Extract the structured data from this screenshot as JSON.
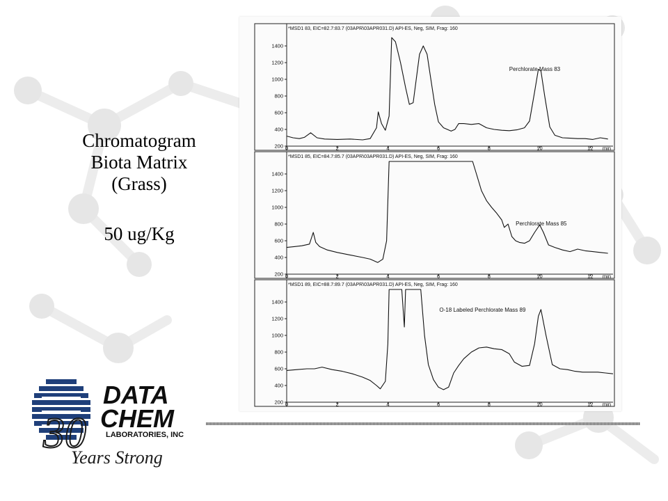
{
  "slide": {
    "title_lines": [
      "Chromatogram",
      "Biota Matrix",
      "(Grass)"
    ],
    "concentration": "50 ug/Kg"
  },
  "logo": {
    "line1": "DATA",
    "line2": "CHEM",
    "line3": "LABORATORIES, INC",
    "anniversary_number": "30",
    "tagline": "Years Strong",
    "colors": {
      "text": "#0e0e0e",
      "globe": "#1f3f7a",
      "script": "#1a1a1a"
    }
  },
  "chart_data": [
    {
      "type": "line",
      "header": "*MSD1 83, EIC=82.7:83.7 (03APR\\03APR031.D)   API-ES, Neg, SIM, Frag: 160",
      "annotations": [
        "Perchlorate Mass 83"
      ],
      "xlabel": "min",
      "x_ticks": [
        0,
        2,
        4,
        6,
        8,
        10,
        12
      ],
      "y_ticks": [
        200,
        400,
        600,
        800,
        1000,
        1200,
        1400
      ],
      "xlim": [
        0,
        12.9
      ],
      "ylim": [
        200,
        1550
      ],
      "series": [
        {
          "x": [
            0,
            0.25,
            0.5,
            0.7,
            0.95,
            1.2,
            1.5,
            2,
            2.5,
            3,
            3.3,
            3.55,
            3.62,
            3.75,
            3.9,
            4.05,
            4.15,
            4.3,
            4.5,
            4.7,
            4.85,
            5,
            5.1,
            5.25,
            5.4,
            5.55,
            5.7,
            5.85,
            6,
            6.2,
            6.35,
            6.5,
            6.65,
            6.8,
            7,
            7.3,
            7.6,
            7.9,
            8.2,
            8.5,
            8.8,
            9.1,
            9.4,
            9.6,
            9.8,
            9.95,
            10.05,
            10.2,
            10.4,
            10.6,
            10.9,
            11.2,
            11.5,
            11.8,
            12.1,
            12.4,
            12.7
          ],
          "y": [
            320,
            300,
            290,
            305,
            360,
            300,
            285,
            280,
            285,
            275,
            290,
            420,
            610,
            470,
            390,
            560,
            1500,
            1450,
            1200,
            900,
            700,
            720,
            950,
            1300,
            1400,
            1300,
            1000,
            700,
            490,
            420,
            400,
            380,
            400,
            470,
            470,
            460,
            470,
            420,
            400,
            390,
            385,
            395,
            420,
            500,
            850,
            1120,
            1100,
            800,
            430,
            330,
            300,
            295,
            290,
            290,
            280,
            300,
            285
          ]
        }
      ]
    },
    {
      "type": "line",
      "header": "*MSD1 85, EIC=84.7:85.7 (03APR\\03APR031.D)   API-ES, Neg, SIM, Frag: 160",
      "annotations": [
        "Perchlorate Mass 85"
      ],
      "xlabel": "min",
      "x_ticks": [
        0,
        2,
        4,
        6,
        8,
        10,
        12
      ],
      "y_ticks": [
        200,
        400,
        600,
        800,
        1000,
        1200,
        1400
      ],
      "xlim": [
        0,
        12.9
      ],
      "ylim": [
        200,
        1550
      ],
      "series": [
        {
          "x": [
            0,
            0.3,
            0.6,
            0.9,
            1.05,
            1.15,
            1.3,
            1.6,
            2,
            2.5,
            3,
            3.3,
            3.6,
            3.8,
            3.95,
            4.05,
            4.15,
            7.35,
            7.5,
            7.7,
            7.9,
            8.1,
            8.3,
            8.5,
            8.6,
            8.75,
            8.9,
            9.05,
            9.2,
            9.4,
            9.6,
            9.8,
            10.0,
            10.15,
            10.35,
            10.6,
            10.9,
            11.2,
            11.5,
            11.8,
            12.1,
            12.4,
            12.7
          ],
          "y": [
            520,
            530,
            540,
            560,
            700,
            580,
            530,
            490,
            460,
            430,
            400,
            380,
            340,
            380,
            600,
            1550,
            1550,
            1550,
            1400,
            1200,
            1080,
            1000,
            930,
            850,
            760,
            800,
            650,
            600,
            580,
            570,
            600,
            700,
            790,
            700,
            550,
            520,
            490,
            470,
            500,
            480,
            470,
            460,
            450
          ]
        }
      ]
    },
    {
      "type": "line",
      "header": "*MSD1 89, EIC=88.7:89.7 (03APR\\03APR031.D)   API-ES, Neg, SIM, Frag: 160",
      "annotations": [
        "O-18 Labeled Perchlorate Mass 89"
      ],
      "xlabel": "min",
      "x_ticks": [
        0,
        2,
        4,
        6,
        8,
        10,
        12
      ],
      "y_ticks": [
        200,
        400,
        600,
        800,
        1000,
        1200,
        1400
      ],
      "xlim": [
        0,
        12.9
      ],
      "ylim": [
        200,
        1550
      ],
      "series": [
        {
          "x": [
            0,
            0.4,
            0.8,
            1.1,
            1.4,
            1.8,
            2.2,
            2.6,
            3,
            3.3,
            3.55,
            3.7,
            3.9,
            4.0,
            4.05,
            4.5,
            4.55,
            4.65,
            4.7,
            5.25,
            5.3,
            5.45,
            5.6,
            5.8,
            6,
            6.2,
            6.4,
            6.6,
            6.8,
            7,
            7.3,
            7.6,
            7.9,
            8.2,
            8.5,
            8.8,
            9.0,
            9.3,
            9.6,
            9.8,
            9.95,
            10.05,
            10.25,
            10.5,
            10.8,
            11.1,
            11.4,
            11.7,
            12,
            12.3,
            12.6,
            12.9
          ],
          "y": [
            580,
            590,
            600,
            600,
            620,
            590,
            570,
            540,
            500,
            460,
            400,
            360,
            450,
            900,
            1550,
            1550,
            1550,
            1100,
            1550,
            1550,
            1550,
            1000,
            650,
            470,
            380,
            350,
            380,
            550,
            640,
            720,
            800,
            850,
            860,
            840,
            830,
            780,
            680,
            630,
            640,
            900,
            1230,
            1310,
            1000,
            650,
            600,
            590,
            570,
            560,
            560,
            560,
            550,
            540
          ]
        }
      ]
    }
  ]
}
